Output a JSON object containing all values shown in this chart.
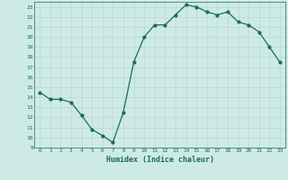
{
  "x": [
    0,
    1,
    2,
    3,
    4,
    5,
    6,
    7,
    8,
    9,
    10,
    11,
    12,
    13,
    14,
    15,
    16,
    17,
    18,
    19,
    20,
    21,
    22,
    23
  ],
  "y": [
    14.5,
    13.8,
    13.8,
    13.5,
    12.2,
    10.8,
    10.2,
    9.5,
    12.5,
    17.5,
    20.0,
    21.2,
    21.2,
    22.2,
    23.2,
    23.0,
    22.5,
    22.2,
    22.5,
    21.5,
    21.2,
    20.5,
    19.0,
    17.5
  ],
  "line_color": "#1a6b5a",
  "marker": "o",
  "markersize": 2.0,
  "linewidth": 0.9,
  "bg_color": "#ceeae7",
  "grid_major_color": "#b8d8d4",
  "grid_minor_color": "#d4ecea",
  "xlabel": "Humidex (Indice chaleur)",
  "xlim": [
    -0.5,
    23.5
  ],
  "ylim": [
    9,
    23.5
  ],
  "yticks": [
    9,
    10,
    11,
    12,
    13,
    14,
    15,
    16,
    17,
    18,
    19,
    20,
    21,
    22,
    23
  ],
  "xticks": [
    0,
    1,
    2,
    3,
    4,
    5,
    6,
    7,
    8,
    9,
    10,
    11,
    12,
    13,
    14,
    15,
    16,
    17,
    18,
    19,
    20,
    21,
    22,
    23
  ],
  "tick_fontsize": 4.5,
  "xlabel_fontsize": 6.0,
  "tick_color": "#1a6b5a",
  "label_color": "#1a6b5a",
  "spine_color": "#1a6b5a"
}
